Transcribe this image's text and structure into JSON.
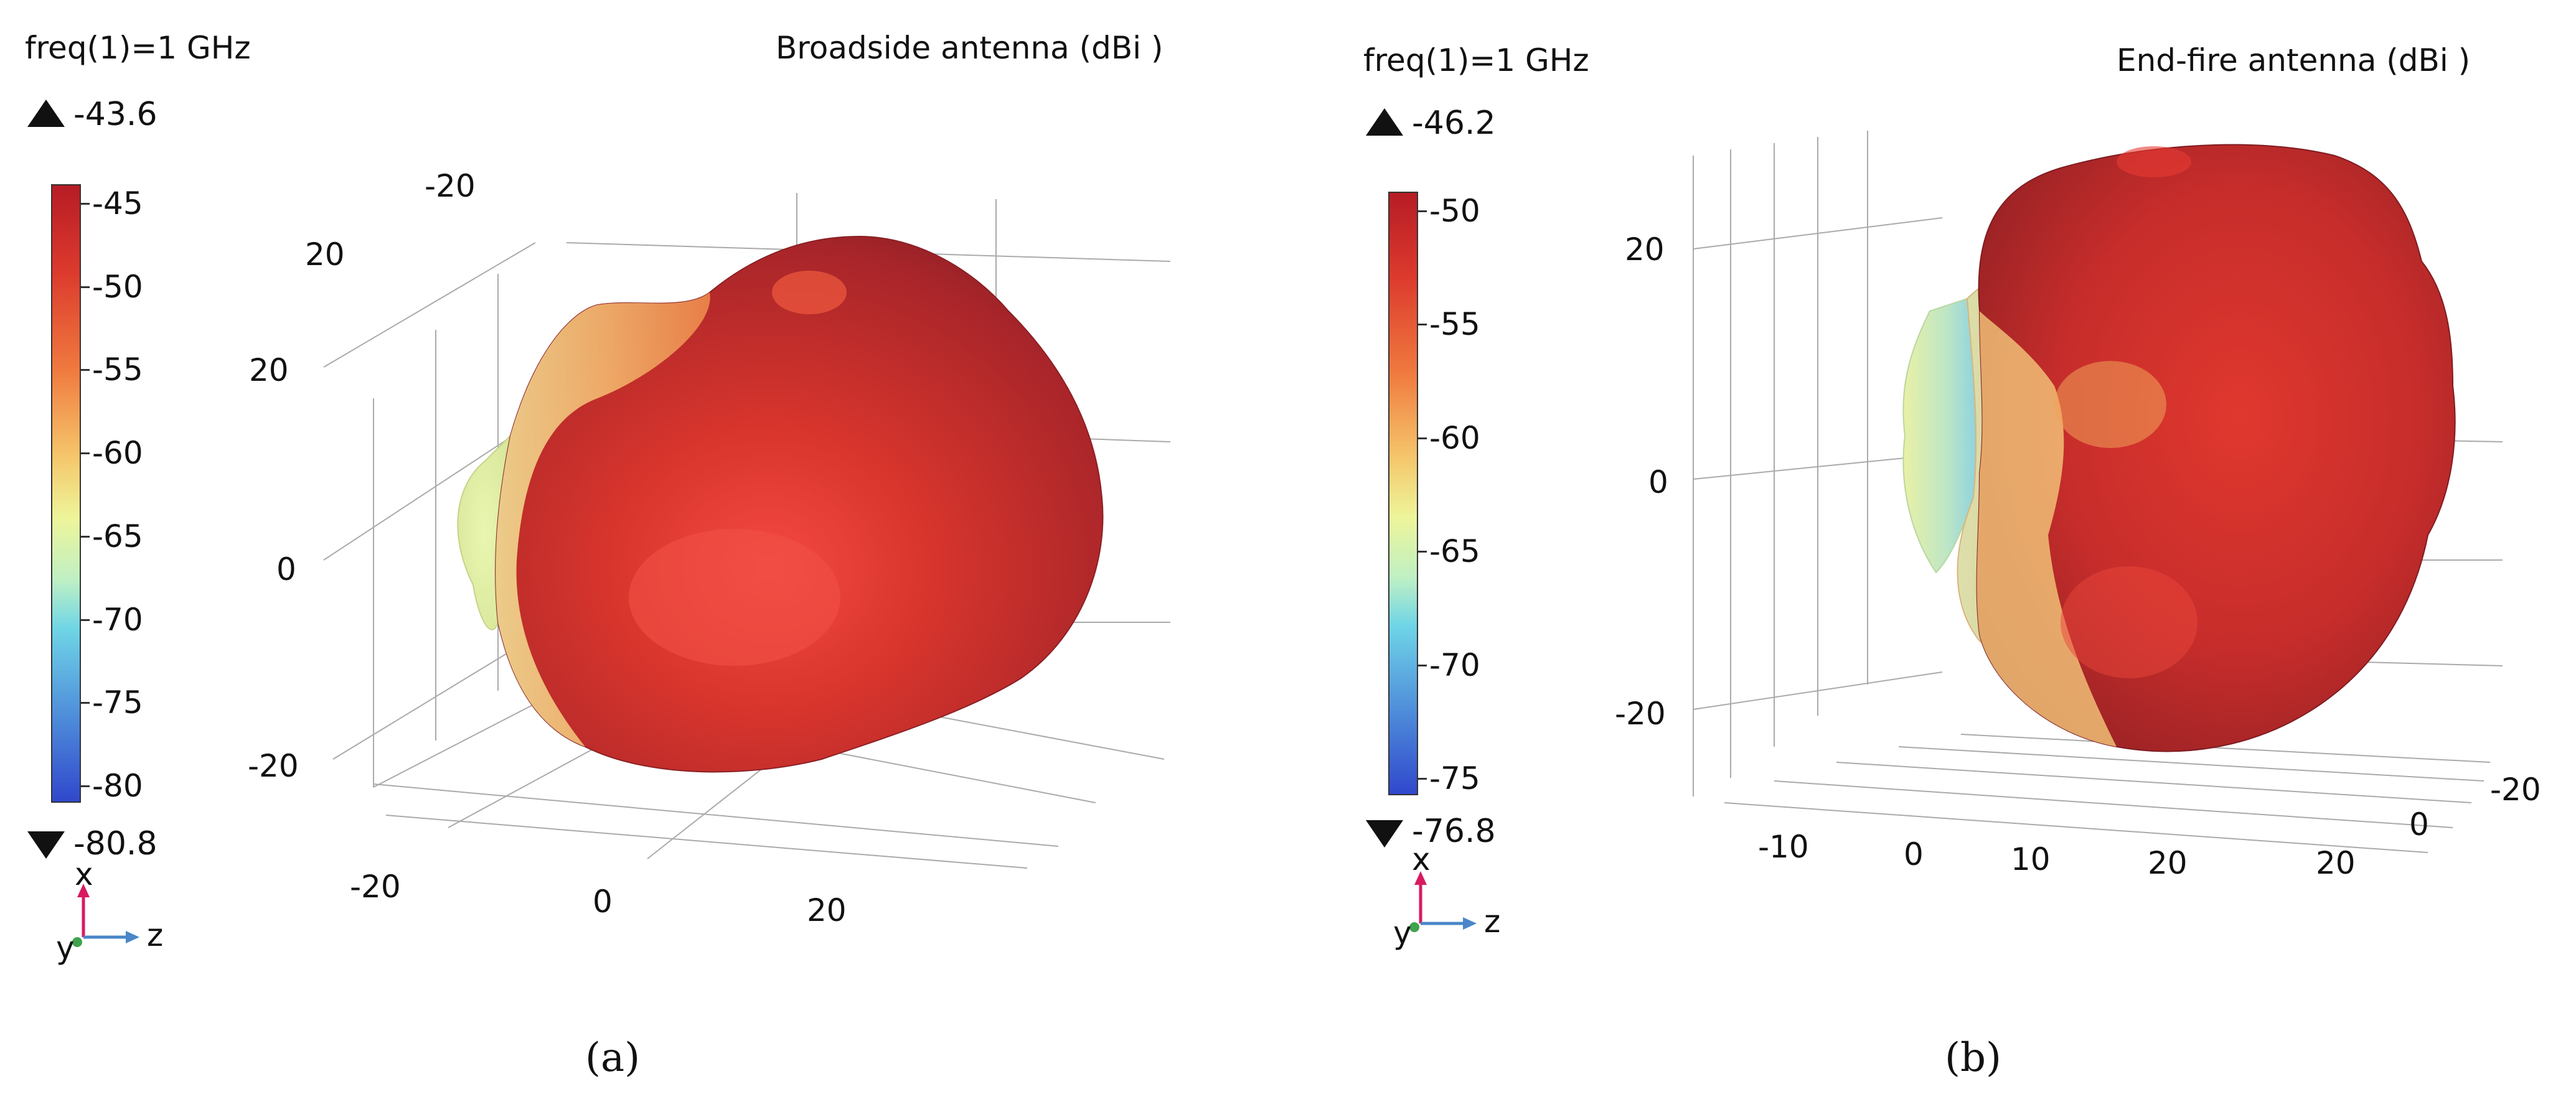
{
  "chart_data": [
    {
      "type": "3d-surface",
      "panel_label": "(a)",
      "title": "Broadside antenna (dBi )",
      "frequency_label": "freq(1)=1 GHz",
      "color_max": "-43.6",
      "color_min": "-80.8",
      "colorbar_ticks": [
        "-45",
        "-50",
        "-55",
        "-60",
        "-65",
        "-70",
        "-75",
        "-80"
      ],
      "colormap": [
        "#b71c25",
        "#dc3a2d",
        "#f07a3f",
        "#f5c66b",
        "#eef59a",
        "#bff0c4",
        "#6fd5e6",
        "#58a2de",
        "#3048cc"
      ],
      "axis_ticks": {
        "vertical": [
          "20",
          "0",
          "-20"
        ],
        "back_left": [
          "-20",
          "20"
        ],
        "bottom": [
          "-20",
          "0",
          "20"
        ]
      },
      "triad": {
        "up": "x",
        "right": "z",
        "out": "y"
      }
    },
    {
      "type": "3d-surface",
      "panel_label": "(b)",
      "title": "End-fire antenna (dBi )",
      "frequency_label": "freq(1)=1 GHz",
      "color_max": "-46.2",
      "color_min": "-76.8",
      "colorbar_ticks": [
        "-50",
        "-55",
        "-60",
        "-65",
        "-70",
        "-75"
      ],
      "colormap": [
        "#b71c25",
        "#dc3a2d",
        "#f07a3f",
        "#f5c66b",
        "#eef59a",
        "#bff0c4",
        "#6fd5e6",
        "#58a2de",
        "#3048cc"
      ],
      "axis_ticks": {
        "vertical": [
          "20",
          "0",
          "-20"
        ],
        "bottom_front": [
          "-10",
          "0",
          "10",
          "20"
        ],
        "right_side": [
          "-20",
          "0",
          "20"
        ]
      },
      "triad": {
        "up": "x",
        "right": "z",
        "out": "y"
      }
    }
  ]
}
